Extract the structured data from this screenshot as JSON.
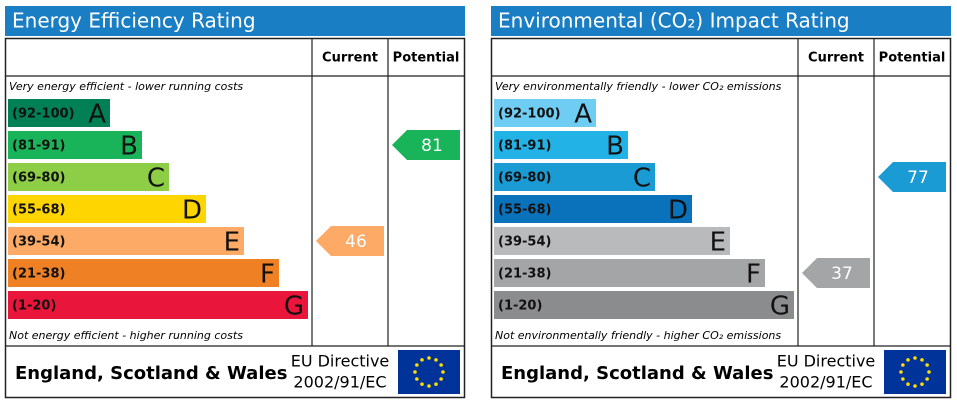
{
  "chart_data": [
    {
      "type": "epc-rating",
      "title": "Energy Efficiency Rating",
      "columns": [
        "Current",
        "Potential"
      ],
      "top_note": "Very energy efficient - lower running costs",
      "bottom_note": "Not energy efficient - higher running costs",
      "categories": [
        "(92-100)",
        "(81-91)",
        "(69-80)",
        "(55-68)",
        "(39-54)",
        "(21-38)",
        "(1-20)"
      ],
      "letters": [
        "A",
        "B",
        "C",
        "D",
        "E",
        "F",
        "G"
      ],
      "colors": [
        "#008054",
        "#19b459",
        "#8dce46",
        "#ffd500",
        "#fcaa65",
        "#ef8023",
        "#e9153b"
      ],
      "current": 46,
      "potential": 81,
      "region": "England, Scotland & Wales",
      "directive": "EU Directive",
      "directive_code": "2002/91/EC"
    },
    {
      "type": "epc-rating",
      "title": "Environmental (CO₂) Impact Rating",
      "columns": [
        "Current",
        "Potential"
      ],
      "top_note": "Very environmentally friendly - lower CO₂ emissions",
      "bottom_note": "Not environmentally friendly - higher CO₂ emissions",
      "categories": [
        "(92-100)",
        "(81-91)",
        "(69-80)",
        "(55-68)",
        "(39-54)",
        "(21-38)",
        "(1-20)"
      ],
      "letters": [
        "A",
        "B",
        "C",
        "D",
        "E",
        "F",
        "G"
      ],
      "colors": [
        "#6fcdf3",
        "#22b2e6",
        "#1b9bd4",
        "#0a72bb",
        "#b9babc",
        "#a4a5a7",
        "#8b8c8e"
      ],
      "current": 37,
      "potential": 77,
      "region": "England, Scotland & Wales",
      "directive": "EU Directive",
      "directive_code": "2002/91/EC"
    }
  ]
}
